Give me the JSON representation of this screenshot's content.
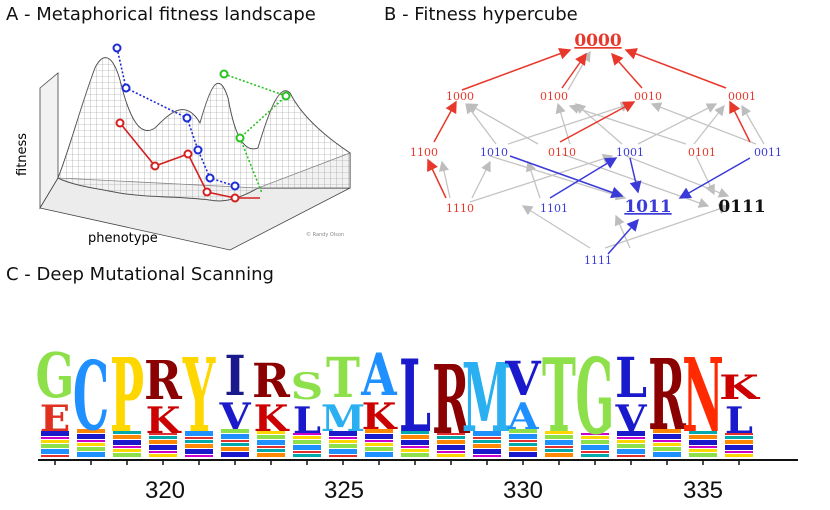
{
  "panelA": {
    "title": "A - Metaphorical fitness landscape",
    "ylabel": "fitness",
    "xlabel": "phenotype",
    "credit": "© Randy Olson"
  },
  "panelB": {
    "title": "B - Fitness hypercube",
    "nodes": {
      "n0000": "0000",
      "n1000": "1000",
      "n0100": "0100",
      "n0010": "0010",
      "n0001": "0001",
      "n1100": "1100",
      "n1010": "1010",
      "n0110": "0110",
      "n1001": "1001",
      "n0101": "0101",
      "n0011": "0011",
      "n1110": "1110",
      "n1101": "1101",
      "n1011": "1011",
      "n0111": "0111",
      "n1111": "1111"
    },
    "colors": {
      "red": "#e8382b",
      "blue": "#3a3ad8",
      "gray": "#bdbdbd",
      "black": "#111111"
    }
  },
  "panelC": {
    "title": "C - Deep Mutational Scanning",
    "ticks": [
      "320",
      "325",
      "330",
      "335"
    ],
    "letters": [
      "G",
      "C",
      "P",
      "R",
      "Y",
      "I",
      "R",
      "S",
      "T",
      "A",
      "L",
      "R",
      "M",
      "V",
      "T",
      "G",
      "L",
      "R",
      "N",
      "K"
    ],
    "secondary": [
      "E",
      "",
      "",
      "K",
      "",
      "V",
      "K",
      "L",
      "M",
      "K",
      "",
      "",
      "",
      "A",
      "",
      "",
      "V",
      "",
      "",
      "L"
    ]
  }
}
